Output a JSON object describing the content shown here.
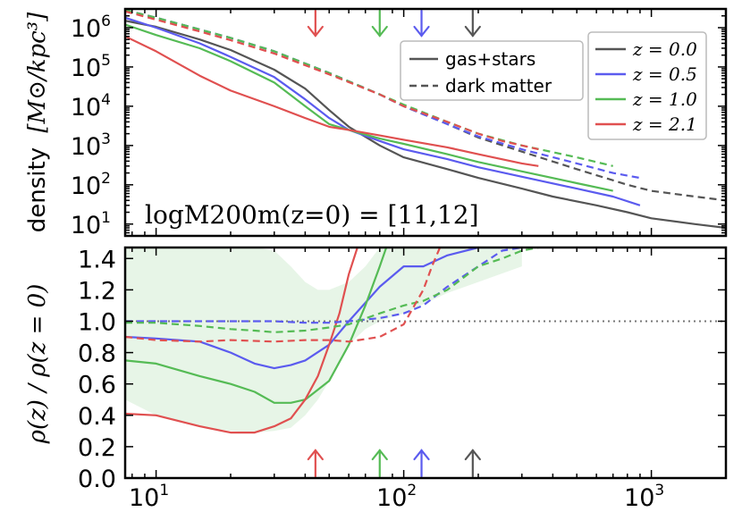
{
  "chart_data": [
    {
      "type": "line",
      "panel": "top",
      "ylabel_text": "density",
      "ylabel_units": "[M⊙/kpc³]",
      "yscale": "log",
      "xscale": "log",
      "xlim": [
        7.5,
        2000
      ],
      "ylim": [
        5,
        3000000
      ],
      "yticks": [
        {
          "value": 10,
          "base": "10",
          "exp": "1"
        },
        {
          "value": 100,
          "base": "10",
          "exp": "2"
        },
        {
          "value": 1000,
          "base": "10",
          "exp": "3"
        },
        {
          "value": 10000,
          "base": "10",
          "exp": "4"
        },
        {
          "value": 100000,
          "base": "10",
          "exp": "5"
        },
        {
          "value": 1000000,
          "base": "10",
          "exp": "6"
        }
      ],
      "annotation": "logM200m(z=0) = [11,12]",
      "legend_style": [
        {
          "label": "gas+stars",
          "dash": "solid"
        },
        {
          "label": "dark matter",
          "dash": "dashed"
        }
      ],
      "legend_z": [
        {
          "label": "z = 0.0",
          "color": "#555555"
        },
        {
          "label": "z = 0.5",
          "color": "#5b5bef"
        },
        {
          "label": "z = 1.0",
          "color": "#55bb55"
        },
        {
          "label": "z = 2.1",
          "color": "#e05050"
        }
      ],
      "arrows": [
        {
          "x": 44,
          "color": "#e05050"
        },
        {
          "x": 80,
          "color": "#55bb55"
        },
        {
          "x": 118,
          "color": "#5b5bef"
        },
        {
          "x": 190,
          "color": "#555555"
        }
      ],
      "series": [
        {
          "name": "z=0.0 gas+stars",
          "color": "#555555",
          "dash": "solid",
          "x": [
            7.5,
            10,
            15,
            20,
            30,
            40,
            50,
            60,
            80,
            100,
            150,
            200,
            300,
            400,
            600,
            800,
            1000,
            1500,
            2000
          ],
          "y": [
            1500000,
            1050000,
            500000,
            270000,
            85000,
            28000,
            8000,
            3000,
            1000,
            500,
            250,
            150,
            80,
            50,
            30,
            20,
            14,
            10,
            8
          ]
        },
        {
          "name": "z=0.5 gas+stars",
          "color": "#5b5bef",
          "dash": "solid",
          "x": [
            7.5,
            10,
            15,
            20,
            30,
            40,
            50,
            60,
            80,
            100,
            150,
            200,
            300,
            500,
            700,
            900
          ],
          "y": [
            1800000,
            1000000,
            400000,
            180000,
            55000,
            15000,
            5000,
            2500,
            1300,
            800,
            450,
            280,
            160,
            80,
            50,
            30
          ]
        },
        {
          "name": "z=1.0 gas+stars",
          "color": "#55bb55",
          "dash": "solid",
          "x": [
            7.5,
            10,
            15,
            20,
            30,
            40,
            50,
            60,
            80,
            100,
            150,
            200,
            300,
            500,
            700
          ],
          "y": [
            1200000,
            650000,
            300000,
            140000,
            40000,
            10000,
            3500,
            2500,
            1500,
            1100,
            600,
            380,
            220,
            110,
            70
          ]
        },
        {
          "name": "z=2.1 gas+stars",
          "color": "#e05050",
          "dash": "solid",
          "x": [
            7.5,
            10,
            15,
            20,
            30,
            40,
            50,
            60,
            80,
            100,
            150,
            200,
            300,
            350
          ],
          "y": [
            600000,
            250000,
            60000,
            25000,
            10000,
            5000,
            3000,
            2500,
            1800,
            1400,
            900,
            600,
            350,
            300
          ]
        },
        {
          "name": "z=0.0 dark matter",
          "color": "#555555",
          "dash": "dashed",
          "x": [
            7.5,
            10,
            15,
            20,
            30,
            50,
            80,
            100,
            150,
            200,
            300,
            500,
            800,
            1000,
            1500,
            2000
          ],
          "y": [
            2800000,
            1800000,
            900000,
            550000,
            250000,
            70000,
            20000,
            10000,
            3500,
            1600,
            700,
            250,
            100,
            70,
            50,
            40
          ]
        },
        {
          "name": "z=0.5 dark matter",
          "color": "#5b5bef",
          "dash": "dashed",
          "x": [
            7.5,
            10,
            15,
            20,
            30,
            50,
            80,
            100,
            150,
            200,
            300,
            500,
            700,
            900
          ],
          "y": [
            2800000,
            1800000,
            900000,
            550000,
            250000,
            70000,
            20000,
            10000,
            3500,
            1700,
            800,
            350,
            200,
            150
          ]
        },
        {
          "name": "z=1.0 dark matter",
          "color": "#55bb55",
          "dash": "dashed",
          "x": [
            7.5,
            10,
            15,
            20,
            30,
            50,
            80,
            100,
            150,
            200,
            300,
            500,
            700
          ],
          "y": [
            2800000,
            1800000,
            900000,
            550000,
            250000,
            70000,
            20000,
            11000,
            4000,
            2000,
            1000,
            500,
            300
          ]
        },
        {
          "name": "z=2.1 dark matter",
          "color": "#e05050",
          "dash": "dashed",
          "x": [
            7.5,
            10,
            15,
            20,
            30,
            50,
            80,
            100,
            150,
            200,
            250,
            300,
            350
          ],
          "y": [
            2600000,
            1600000,
            800000,
            480000,
            220000,
            65000,
            20000,
            10000,
            4000,
            2000,
            1300,
            1000,
            800
          ]
        }
      ]
    },
    {
      "type": "line",
      "panel": "bottom",
      "ylabel": "ρ(z)  / ρ(z = 0)",
      "yscale": "linear",
      "xscale": "log",
      "xlim": [
        7.5,
        2000
      ],
      "ylim": [
        0.0,
        1.47
      ],
      "yticks": [
        "0.0",
        "0.2",
        "0.4",
        "0.6",
        "0.8",
        "1.0",
        "1.2",
        "1.4"
      ],
      "xticks": [
        {
          "value": 10,
          "base": "10",
          "exp": "1"
        },
        {
          "value": 100,
          "base": "10",
          "exp": "2"
        },
        {
          "value": 1000,
          "base": "10",
          "exp": "3"
        }
      ],
      "reference_line": 1.0,
      "band": {
        "color": "#55bb55",
        "x": [
          7.5,
          10,
          15,
          20,
          25,
          30,
          35,
          40,
          45,
          50,
          60,
          70,
          80,
          100,
          150,
          200,
          300
        ],
        "upper": [
          1.47,
          1.47,
          1.47,
          1.47,
          1.47,
          1.45,
          1.35,
          1.25,
          1.2,
          1.2,
          1.25,
          1.35,
          1.47,
          1.47,
          1.47,
          1.47,
          1.47
        ],
        "lower": [
          0.5,
          0.4,
          0.33,
          0.3,
          0.29,
          0.3,
          0.32,
          0.4,
          0.5,
          0.62,
          0.85,
          0.95,
          1.0,
          1.05,
          1.18,
          1.25,
          1.35
        ]
      },
      "arrows": [
        {
          "x": 44,
          "color": "#e05050"
        },
        {
          "x": 80,
          "color": "#55bb55"
        },
        {
          "x": 118,
          "color": "#5b5bef"
        },
        {
          "x": 190,
          "color": "#555555"
        }
      ],
      "series": [
        {
          "name": "z=0.5 gas+stars",
          "color": "#5b5bef",
          "dash": "solid",
          "x": [
            7.5,
            10,
            15,
            20,
            25,
            30,
            35,
            40,
            50,
            60,
            80,
            100,
            120,
            150,
            200,
            300
          ],
          "y": [
            0.9,
            0.89,
            0.87,
            0.8,
            0.73,
            0.7,
            0.72,
            0.75,
            0.85,
            1.0,
            1.22,
            1.35,
            1.35,
            1.42,
            1.47,
            1.47
          ]
        },
        {
          "name": "z=1.0 gas+stars",
          "color": "#55bb55",
          "dash": "solid",
          "x": [
            7.5,
            10,
            15,
            20,
            25,
            30,
            35,
            40,
            50,
            60,
            70,
            80,
            85
          ],
          "y": [
            0.75,
            0.73,
            0.65,
            0.6,
            0.55,
            0.48,
            0.48,
            0.5,
            0.62,
            0.85,
            1.1,
            1.35,
            1.47
          ]
        },
        {
          "name": "z=2.1 gas+stars",
          "color": "#e05050",
          "dash": "solid",
          "x": [
            7.5,
            10,
            15,
            20,
            25,
            30,
            35,
            40,
            45,
            50,
            55,
            60,
            65
          ],
          "y": [
            0.41,
            0.4,
            0.33,
            0.29,
            0.29,
            0.33,
            0.38,
            0.5,
            0.65,
            0.85,
            1.05,
            1.3,
            1.47
          ]
        },
        {
          "name": "z=0.5 dark matter",
          "color": "#5b5bef",
          "dash": "dashed",
          "x": [
            7.5,
            10,
            15,
            20,
            30,
            40,
            50,
            60,
            80,
            100,
            120,
            150,
            200,
            250,
            300
          ],
          "y": [
            1.0,
            1.0,
            1.0,
            1.0,
            1.0,
            0.99,
            0.99,
            1.0,
            1.02,
            1.05,
            1.1,
            1.22,
            1.35,
            1.45,
            1.47
          ]
        },
        {
          "name": "z=1.0 dark matter",
          "color": "#55bb55",
          "dash": "dashed",
          "x": [
            7.5,
            10,
            15,
            20,
            25,
            30,
            40,
            50,
            60,
            80,
            100,
            120,
            150,
            200,
            250,
            300,
            350
          ],
          "y": [
            0.99,
            0.99,
            0.97,
            0.95,
            0.94,
            0.93,
            0.94,
            0.96,
            0.98,
            1.05,
            1.1,
            1.13,
            1.2,
            1.35,
            1.4,
            1.45,
            1.47
          ]
        },
        {
          "name": "z=2.1 dark matter",
          "color": "#e05050",
          "dash": "dashed",
          "x": [
            7.5,
            10,
            15,
            20,
            30,
            40,
            50,
            60,
            80,
            100,
            120,
            130,
            140
          ],
          "y": [
            0.9,
            0.88,
            0.87,
            0.88,
            0.87,
            0.88,
            0.88,
            0.87,
            0.9,
            0.98,
            1.2,
            1.35,
            1.47
          ]
        }
      ]
    }
  ]
}
